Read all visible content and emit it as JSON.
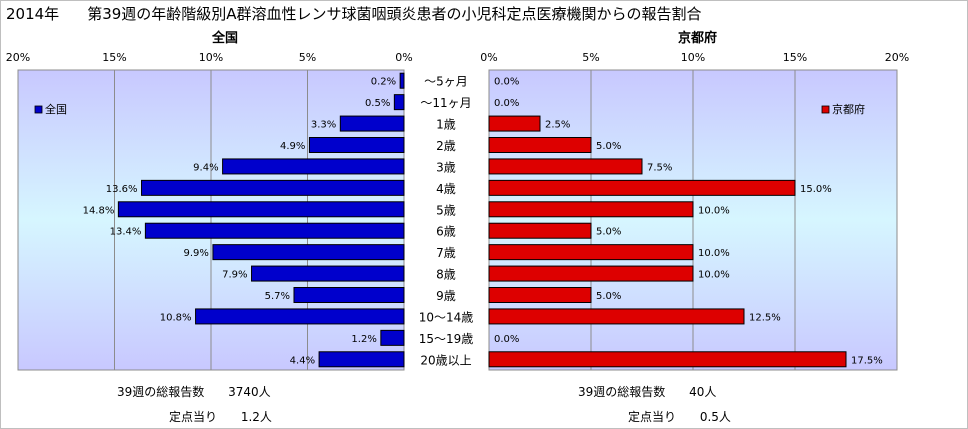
{
  "title": {
    "year": "2014年",
    "text": "第39週の年齢階級別A群溶血性レンサ球菌咽頭炎患者の小児科定点医療機関からの報告割合"
  },
  "chart_data": [
    {
      "type": "bar",
      "orientation": "horizontal",
      "direction": "right-to-left",
      "title": "全国",
      "legend": "全国",
      "legend_position": "top-left",
      "color": "#0000cc",
      "categories": [
        "～5ヶ月",
        "～11ヶ月",
        "1歳",
        "2歳",
        "3歳",
        "4歳",
        "5歳",
        "6歳",
        "7歳",
        "8歳",
        "9歳",
        "10～14歳",
        "15～19歳",
        "20歳以上"
      ],
      "values": [
        0.2,
        0.5,
        3.3,
        4.9,
        9.4,
        13.6,
        14.8,
        13.4,
        9.9,
        7.9,
        5.7,
        10.8,
        1.2,
        4.4
      ],
      "labels": [
        "0.2%",
        "0.5%",
        "3.3%",
        "4.9%",
        "9.4%",
        "13.6%",
        "14.8%",
        "13.4%",
        "9.9%",
        "7.9%",
        "5.7%",
        "10.8%",
        "1.2%",
        "4.4%"
      ],
      "xticks": [
        "20%",
        "15%",
        "10%",
        "5%",
        "0%"
      ],
      "xlim": [
        0,
        20
      ],
      "grid": true
    },
    {
      "type": "bar",
      "orientation": "horizontal",
      "direction": "left-to-right",
      "title": "京都府",
      "legend": "京都府",
      "legend_position": "top-right",
      "color": "#dd0000",
      "categories": [
        "～5ヶ月",
        "～11ヶ月",
        "1歳",
        "2歳",
        "3歳",
        "4歳",
        "5歳",
        "6歳",
        "7歳",
        "8歳",
        "9歳",
        "10～14歳",
        "15～19歳",
        "20歳以上"
      ],
      "values": [
        0.0,
        0.0,
        2.5,
        5.0,
        7.5,
        15.0,
        10.0,
        5.0,
        10.0,
        10.0,
        5.0,
        12.5,
        0.0,
        17.5
      ],
      "labels": [
        "0.0%",
        "0.0%",
        "2.5%",
        "5.0%",
        "7.5%",
        "15.0%",
        "10.0%",
        "5.0%",
        "10.0%",
        "10.0%",
        "5.0%",
        "12.5%",
        "0.0%",
        "17.5%"
      ],
      "xticks": [
        "0%",
        "5%",
        "10%",
        "15%",
        "20%"
      ],
      "xlim": [
        0,
        20
      ],
      "grid": true
    }
  ],
  "stats": {
    "national": {
      "total_label": "39週の総報告数",
      "total_value": "3740人",
      "per_label": "定点当り",
      "per_value": "1.2人"
    },
    "kyoto": {
      "total_label": "39週の総報告数",
      "total_value": "40人",
      "per_label": "定点当り",
      "per_value": "0.5人"
    }
  }
}
